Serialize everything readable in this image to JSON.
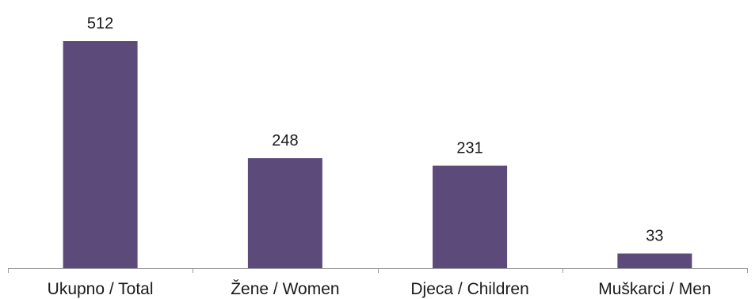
{
  "chart_data": {
    "type": "bar",
    "categories": [
      "Ukupno / Total",
      "Žene / Women",
      "Djeca / Children",
      "Muškarci / Men"
    ],
    "values": [
      512,
      248,
      231,
      33
    ],
    "ylim": [
      0,
      512
    ],
    "grid": false,
    "legend": "none",
    "colors": {
      "bar": "#5b4a7a",
      "axis": "#9a9a9a"
    }
  }
}
